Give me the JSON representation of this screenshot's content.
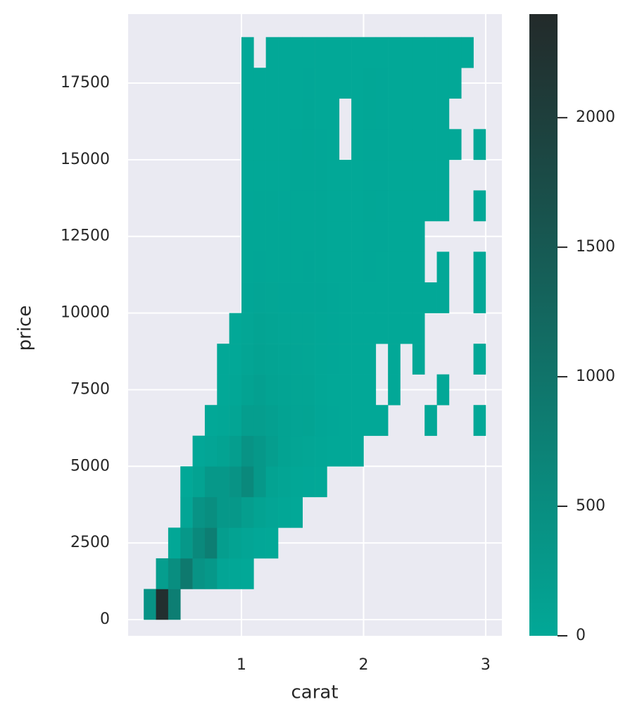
{
  "chart_data": {
    "type": "histogram2d",
    "xlabel": "carat",
    "ylabel": "price",
    "xbins": [
      0.2,
      0.3,
      0.4,
      0.5,
      0.6,
      0.7,
      0.8,
      0.9,
      1.0,
      1.1,
      1.2,
      1.3,
      1.4,
      1.5,
      1.6,
      1.7,
      1.8,
      1.9,
      2.0,
      2.1,
      2.2,
      2.3,
      2.4,
      2.5,
      2.6,
      2.7,
      2.8,
      2.9,
      3.0
    ],
    "ybins": [
      0,
      1000,
      2000,
      3000,
      4000,
      5000,
      6000,
      7000,
      8000,
      9000,
      10000,
      11000,
      12000,
      13000,
      14000,
      15000,
      16000,
      17000,
      18000,
      19000
    ],
    "counts": [
      [
        400,
        2300,
        800,
        null,
        null,
        null,
        null,
        null,
        null,
        null,
        null,
        null,
        null,
        null,
        null,
        null,
        null,
        null,
        null,
        null,
        null,
        null,
        null,
        null,
        null,
        null,
        null,
        null
      ],
      [
        null,
        200,
        500,
        900,
        400,
        300,
        50,
        20,
        5,
        null,
        null,
        null,
        null,
        null,
        null,
        null,
        null,
        null,
        null,
        null,
        null,
        null,
        null,
        null,
        null,
        null,
        null,
        null
      ],
      [
        null,
        null,
        20,
        300,
        600,
        800,
        200,
        100,
        50,
        10,
        5,
        null,
        null,
        null,
        null,
        null,
        null,
        null,
        null,
        null,
        null,
        null,
        null,
        null,
        null,
        null,
        null,
        null
      ],
      [
        null,
        null,
        null,
        50,
        400,
        500,
        300,
        300,
        200,
        100,
        50,
        20,
        5,
        null,
        null,
        null,
        null,
        null,
        null,
        null,
        null,
        null,
        null,
        null,
        null,
        null,
        null,
        null
      ],
      [
        null,
        null,
        null,
        5,
        100,
        300,
        300,
        400,
        600,
        300,
        100,
        60,
        20,
        10,
        3,
        null,
        null,
        null,
        null,
        null,
        null,
        null,
        null,
        null,
        null,
        null,
        null,
        null
      ],
      [
        null,
        null,
        null,
        null,
        10,
        50,
        100,
        200,
        400,
        300,
        200,
        100,
        60,
        40,
        15,
        3,
        1,
        1,
        null,
        null,
        null,
        null,
        null,
        null,
        null,
        null,
        null,
        null
      ],
      [
        null,
        null,
        null,
        null,
        null,
        5,
        20,
        60,
        200,
        200,
        150,
        100,
        70,
        80,
        30,
        10,
        3,
        5,
        2,
        1,
        null,
        null,
        null,
        1,
        null,
        null,
        null,
        1
      ],
      [
        null,
        null,
        null,
        null,
        null,
        null,
        5,
        20,
        100,
        150,
        100,
        80,
        60,
        60,
        25,
        8,
        3,
        3,
        2,
        null,
        1,
        null,
        null,
        null,
        1,
        null,
        null,
        null
      ],
      [
        null,
        null,
        null,
        null,
        null,
        null,
        1,
        5,
        60,
        100,
        80,
        60,
        50,
        40,
        20,
        10,
        4,
        2,
        3,
        null,
        1,
        null,
        1,
        null,
        null,
        null,
        null,
        1
      ],
      [
        null,
        null,
        null,
        null,
        null,
        null,
        null,
        2,
        40,
        80,
        60,
        40,
        40,
        40,
        25,
        10,
        4,
        3,
        5,
        2,
        1,
        1,
        1,
        null,
        null,
        null,
        null,
        null
      ],
      [
        null,
        null,
        null,
        null,
        null,
        null,
        null,
        null,
        30,
        50,
        40,
        30,
        30,
        30,
        30,
        10,
        5,
        3,
        8,
        5,
        3,
        2,
        1,
        1,
        1,
        null,
        null,
        1
      ],
      [
        null,
        null,
        null,
        null,
        null,
        null,
        null,
        null,
        20,
        30,
        25,
        20,
        25,
        30,
        25,
        8,
        3,
        3,
        10,
        8,
        4,
        3,
        2,
        null,
        1,
        null,
        null,
        1
      ],
      [
        null,
        null,
        null,
        null,
        null,
        null,
        null,
        null,
        15,
        20,
        15,
        15,
        20,
        25,
        20,
        8,
        2,
        2,
        10,
        10,
        6,
        3,
        2,
        null,
        null,
        null,
        null,
        null
      ],
      [
        null,
        null,
        null,
        null,
        null,
        null,
        null,
        null,
        10,
        12,
        12,
        10,
        15,
        20,
        15,
        6,
        1,
        2,
        12,
        10,
        6,
        4,
        3,
        1,
        1,
        null,
        null,
        1
      ],
      [
        null,
        null,
        null,
        null,
        null,
        null,
        null,
        null,
        6,
        8,
        8,
        6,
        12,
        15,
        12,
        5,
        1,
        2,
        10,
        10,
        8,
        5,
        3,
        2,
        1,
        null,
        null,
        null
      ],
      [
        null,
        null,
        null,
        null,
        null,
        null,
        null,
        null,
        5,
        6,
        6,
        5,
        10,
        12,
        10,
        4,
        null,
        2,
        10,
        10,
        8,
        5,
        4,
        2,
        1,
        1,
        null,
        1
      ],
      [
        null,
        null,
        null,
        null,
        null,
        null,
        null,
        null,
        3,
        4,
        4,
        3,
        8,
        12,
        8,
        3,
        null,
        1,
        12,
        10,
        8,
        6,
        4,
        3,
        2,
        null,
        null,
        null
      ],
      [
        null,
        null,
        null,
        null,
        null,
        null,
        null,
        null,
        2,
        2,
        3,
        2,
        6,
        10,
        7,
        3,
        1,
        2,
        12,
        10,
        8,
        6,
        5,
        3,
        2,
        1,
        null,
        null
      ],
      [
        null,
        null,
        null,
        null,
        null,
        null,
        null,
        null,
        1,
        null,
        1,
        2,
        3,
        6,
        4,
        2,
        1,
        2,
        8,
        8,
        6,
        4,
        5,
        4,
        3,
        2,
        1,
        null
      ]
    ],
    "xlim": [
      0.072,
      3.133
    ],
    "ylim": [
      -528,
      19751
    ],
    "xticks": [
      1,
      2,
      3
    ],
    "yticks": [
      0,
      2500,
      5000,
      7500,
      10000,
      12500,
      15000,
      17500
    ],
    "clim": [
      0,
      2400
    ],
    "cticks": [
      0,
      500,
      1000,
      1500,
      2000
    ],
    "colors": [
      "#02a897",
      "#232a2a"
    ],
    "grid": true
  }
}
